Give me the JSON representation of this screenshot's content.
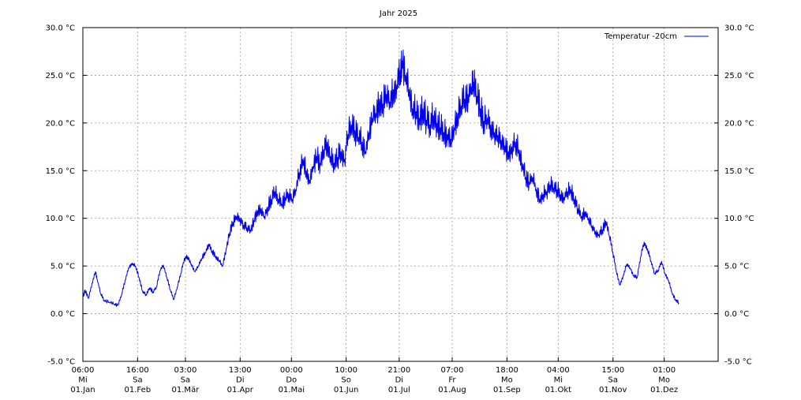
{
  "chart_data": {
    "type": "line",
    "title": "Jahr 2025",
    "xlabel": "",
    "ylabel": "",
    "ylim": [
      -5,
      30
    ],
    "y_ticks": [
      {
        "value": 30,
        "label": "30.0 °C"
      },
      {
        "value": 25,
        "label": "25.0 °C"
      },
      {
        "value": 20,
        "label": "20.0 °C"
      },
      {
        "value": 15,
        "label": "15.0 °C"
      },
      {
        "value": 10,
        "label": "10.0 °C"
      },
      {
        "value": 5,
        "label": "5.0 °C"
      },
      {
        "value": 0,
        "label": "0.0 °C"
      },
      {
        "value": -5,
        "label": "-5.0 °C"
      }
    ],
    "x_range": [
      "2025-01-01 06:00",
      "2026-01-01 00:00"
    ],
    "x_ticks": [
      {
        "x": "2025-01-01 06:00",
        "lines": [
          "06:00",
          "Mi",
          "01.Jan"
        ]
      },
      {
        "x": "2025-02-01 16:00",
        "lines": [
          "16:00",
          "Sa",
          "01.Feb"
        ]
      },
      {
        "x": "2025-03-01 03:00",
        "lines": [
          "03:00",
          "Sa",
          "01.Mär"
        ]
      },
      {
        "x": "2025-04-01 13:00",
        "lines": [
          "13:00",
          "Di",
          "01.Apr"
        ]
      },
      {
        "x": "2025-05-01 00:00",
        "lines": [
          "00:00",
          "Do",
          "01.Mai"
        ]
      },
      {
        "x": "2025-06-01 10:00",
        "lines": [
          "10:00",
          "So",
          "01.Jun"
        ]
      },
      {
        "x": "2025-07-01 21:00",
        "lines": [
          "21:00",
          "Di",
          "01.Jul"
        ]
      },
      {
        "x": "2025-08-01 07:00",
        "lines": [
          "07:00",
          "Fr",
          "01.Aug"
        ]
      },
      {
        "x": "2025-09-01 18:00",
        "lines": [
          "18:00",
          "Mo",
          "01.Sep"
        ]
      },
      {
        "x": "2025-10-01 04:00",
        "lines": [
          "04:00",
          "Mi",
          "01.Okt"
        ]
      },
      {
        "x": "2025-11-01 15:00",
        "lines": [
          "15:00",
          "Sa",
          "01.Nov"
        ]
      },
      {
        "x": "2025-12-01 01:00",
        "lines": [
          "01:00",
          "Mo",
          "01.Dez"
        ]
      }
    ],
    "grid": true,
    "legend_position": "top-right",
    "series": [
      {
        "name": "Temperatur -20cm",
        "color": "#0000ee",
        "points": [
          [
            "2025-01-01",
            1.8
          ],
          [
            "2025-01-02",
            2.5
          ],
          [
            "2025-01-04",
            1.6
          ],
          [
            "2025-01-06",
            3.2
          ],
          [
            "2025-01-08",
            4.4
          ],
          [
            "2025-01-09",
            3.6
          ],
          [
            "2025-01-11",
            2.1
          ],
          [
            "2025-01-13",
            1.4
          ],
          [
            "2025-01-16",
            1.2
          ],
          [
            "2025-01-19",
            1.0
          ],
          [
            "2025-01-21",
            0.9
          ],
          [
            "2025-01-23",
            2.0
          ],
          [
            "2025-01-25",
            3.5
          ],
          [
            "2025-01-27",
            4.8
          ],
          [
            "2025-01-29",
            5.3
          ],
          [
            "2025-01-31",
            5.0
          ],
          [
            "2025-02-02",
            3.8
          ],
          [
            "2025-02-04",
            2.4
          ],
          [
            "2025-02-06",
            2.0
          ],
          [
            "2025-02-08",
            2.7
          ],
          [
            "2025-02-10",
            2.3
          ],
          [
            "2025-02-12",
            2.8
          ],
          [
            "2025-02-14",
            4.5
          ],
          [
            "2025-02-16",
            5.1
          ],
          [
            "2025-02-18",
            3.8
          ],
          [
            "2025-02-20",
            2.5
          ],
          [
            "2025-02-22",
            1.5
          ],
          [
            "2025-02-24",
            2.8
          ],
          [
            "2025-02-26",
            4.2
          ],
          [
            "2025-02-28",
            5.8
          ],
          [
            "2025-03-02",
            6.0
          ],
          [
            "2025-03-04",
            5.2
          ],
          [
            "2025-03-06",
            4.4
          ],
          [
            "2025-03-08",
            5.0
          ],
          [
            "2025-03-10",
            5.8
          ],
          [
            "2025-03-12",
            6.4
          ],
          [
            "2025-03-14",
            7.3
          ],
          [
            "2025-03-16",
            6.6
          ],
          [
            "2025-03-18",
            6.0
          ],
          [
            "2025-03-20",
            5.6
          ],
          [
            "2025-03-22",
            5.0
          ],
          [
            "2025-03-24",
            6.8
          ],
          [
            "2025-03-26",
            8.5
          ],
          [
            "2025-03-28",
            9.6
          ],
          [
            "2025-03-30",
            10.2
          ],
          [
            "2025-04-01",
            10.0
          ],
          [
            "2025-04-03",
            9.3
          ],
          [
            "2025-04-05",
            9.0
          ],
          [
            "2025-04-07",
            8.8
          ],
          [
            "2025-04-09",
            9.8
          ],
          [
            "2025-04-11",
            10.8
          ],
          [
            "2025-04-13",
            11.0
          ],
          [
            "2025-04-15",
            10.2
          ],
          [
            "2025-04-17",
            11.2
          ],
          [
            "2025-04-19",
            12.0
          ],
          [
            "2025-04-21",
            12.8
          ],
          [
            "2025-04-23",
            12.0
          ],
          [
            "2025-04-25",
            11.5
          ],
          [
            "2025-04-27",
            12.2
          ],
          [
            "2025-04-29",
            12.6
          ],
          [
            "2025-05-01",
            12.0
          ],
          [
            "2025-05-03",
            13.0
          ],
          [
            "2025-05-05",
            14.8
          ],
          [
            "2025-05-07",
            16.2
          ],
          [
            "2025-05-09",
            15.0
          ],
          [
            "2025-05-11",
            14.0
          ],
          [
            "2025-05-13",
            15.5
          ],
          [
            "2025-05-15",
            16.5
          ],
          [
            "2025-05-17",
            15.8
          ],
          [
            "2025-05-19",
            17.2
          ],
          [
            "2025-05-21",
            18.0
          ],
          [
            "2025-05-23",
            16.5
          ],
          [
            "2025-05-25",
            15.8
          ],
          [
            "2025-05-27",
            16.4
          ],
          [
            "2025-05-29",
            17.0
          ],
          [
            "2025-05-31",
            16.2
          ],
          [
            "2025-06-02",
            18.8
          ],
          [
            "2025-06-04",
            19.8
          ],
          [
            "2025-06-06",
            19.2
          ],
          [
            "2025-06-08",
            18.5
          ],
          [
            "2025-06-10",
            18.0
          ],
          [
            "2025-06-12",
            17.0
          ],
          [
            "2025-06-14",
            19.0
          ],
          [
            "2025-06-16",
            20.5
          ],
          [
            "2025-06-18",
            21.0
          ],
          [
            "2025-06-20",
            22.5
          ],
          [
            "2025-06-22",
            22.0
          ],
          [
            "2025-06-24",
            23.0
          ],
          [
            "2025-06-26",
            22.2
          ],
          [
            "2025-06-28",
            23.5
          ],
          [
            "2025-06-30",
            24.0
          ],
          [
            "2025-07-02",
            25.5
          ],
          [
            "2025-07-03",
            26.5
          ],
          [
            "2025-07-05",
            25.0
          ],
          [
            "2025-07-07",
            23.5
          ],
          [
            "2025-07-09",
            21.5
          ],
          [
            "2025-07-11",
            21.2
          ],
          [
            "2025-07-13",
            20.5
          ],
          [
            "2025-07-15",
            21.5
          ],
          [
            "2025-07-17",
            20.3
          ],
          [
            "2025-07-19",
            19.8
          ],
          [
            "2025-07-21",
            20.8
          ],
          [
            "2025-07-23",
            20.0
          ],
          [
            "2025-07-25",
            19.5
          ],
          [
            "2025-07-27",
            19.0
          ],
          [
            "2025-07-29",
            18.8
          ],
          [
            "2025-07-31",
            18.3
          ],
          [
            "2025-08-02",
            19.5
          ],
          [
            "2025-08-04",
            21.0
          ],
          [
            "2025-08-06",
            21.8
          ],
          [
            "2025-08-08",
            22.5
          ],
          [
            "2025-08-10",
            23.0
          ],
          [
            "2025-08-12",
            23.8
          ],
          [
            "2025-08-13",
            24.3
          ],
          [
            "2025-08-15",
            22.8
          ],
          [
            "2025-08-17",
            21.5
          ],
          [
            "2025-08-19",
            20.2
          ],
          [
            "2025-08-21",
            20.5
          ],
          [
            "2025-08-23",
            19.8
          ],
          [
            "2025-08-25",
            19.0
          ],
          [
            "2025-08-27",
            18.7
          ],
          [
            "2025-08-29",
            18.2
          ],
          [
            "2025-08-31",
            17.6
          ],
          [
            "2025-09-02",
            17.0
          ],
          [
            "2025-09-04",
            17.5
          ],
          [
            "2025-09-06",
            18.0
          ],
          [
            "2025-09-08",
            17.2
          ],
          [
            "2025-09-10",
            15.8
          ],
          [
            "2025-09-12",
            14.3
          ],
          [
            "2025-09-14",
            13.8
          ],
          [
            "2025-09-16",
            14.3
          ],
          [
            "2025-09-18",
            13.0
          ],
          [
            "2025-09-20",
            12.0
          ],
          [
            "2025-09-22",
            12.5
          ],
          [
            "2025-09-24",
            12.8
          ],
          [
            "2025-09-26",
            13.5
          ],
          [
            "2025-09-28",
            13.2
          ],
          [
            "2025-09-30",
            13.0
          ],
          [
            "2025-10-02",
            12.5
          ],
          [
            "2025-10-04",
            12.2
          ],
          [
            "2025-10-06",
            12.8
          ],
          [
            "2025-10-08",
            13.0
          ],
          [
            "2025-10-10",
            12.0
          ],
          [
            "2025-10-12",
            11.0
          ],
          [
            "2025-10-14",
            10.2
          ],
          [
            "2025-10-16",
            10.7
          ],
          [
            "2025-10-18",
            10.0
          ],
          [
            "2025-10-20",
            9.2
          ],
          [
            "2025-10-22",
            8.6
          ],
          [
            "2025-10-24",
            8.3
          ],
          [
            "2025-10-26",
            8.8
          ],
          [
            "2025-10-28",
            9.7
          ],
          [
            "2025-10-30",
            8.2
          ],
          [
            "2025-11-01",
            6.5
          ],
          [
            "2025-11-03",
            4.5
          ],
          [
            "2025-11-05",
            3.0
          ],
          [
            "2025-11-07",
            4.0
          ],
          [
            "2025-11-09",
            5.2
          ],
          [
            "2025-11-11",
            4.8
          ],
          [
            "2025-11-13",
            4.0
          ],
          [
            "2025-11-15",
            3.8
          ],
          [
            "2025-11-17",
            6.0
          ],
          [
            "2025-11-19",
            7.5
          ],
          [
            "2025-11-21",
            6.8
          ],
          [
            "2025-11-23",
            5.5
          ],
          [
            "2025-11-25",
            4.2
          ],
          [
            "2025-11-27",
            4.5
          ],
          [
            "2025-11-29",
            5.5
          ],
          [
            "2025-12-01",
            4.2
          ],
          [
            "2025-12-03",
            3.5
          ],
          [
            "2025-12-05",
            2.2
          ],
          [
            "2025-12-07",
            1.5
          ],
          [
            "2025-12-09",
            1.1
          ]
        ]
      }
    ]
  }
}
